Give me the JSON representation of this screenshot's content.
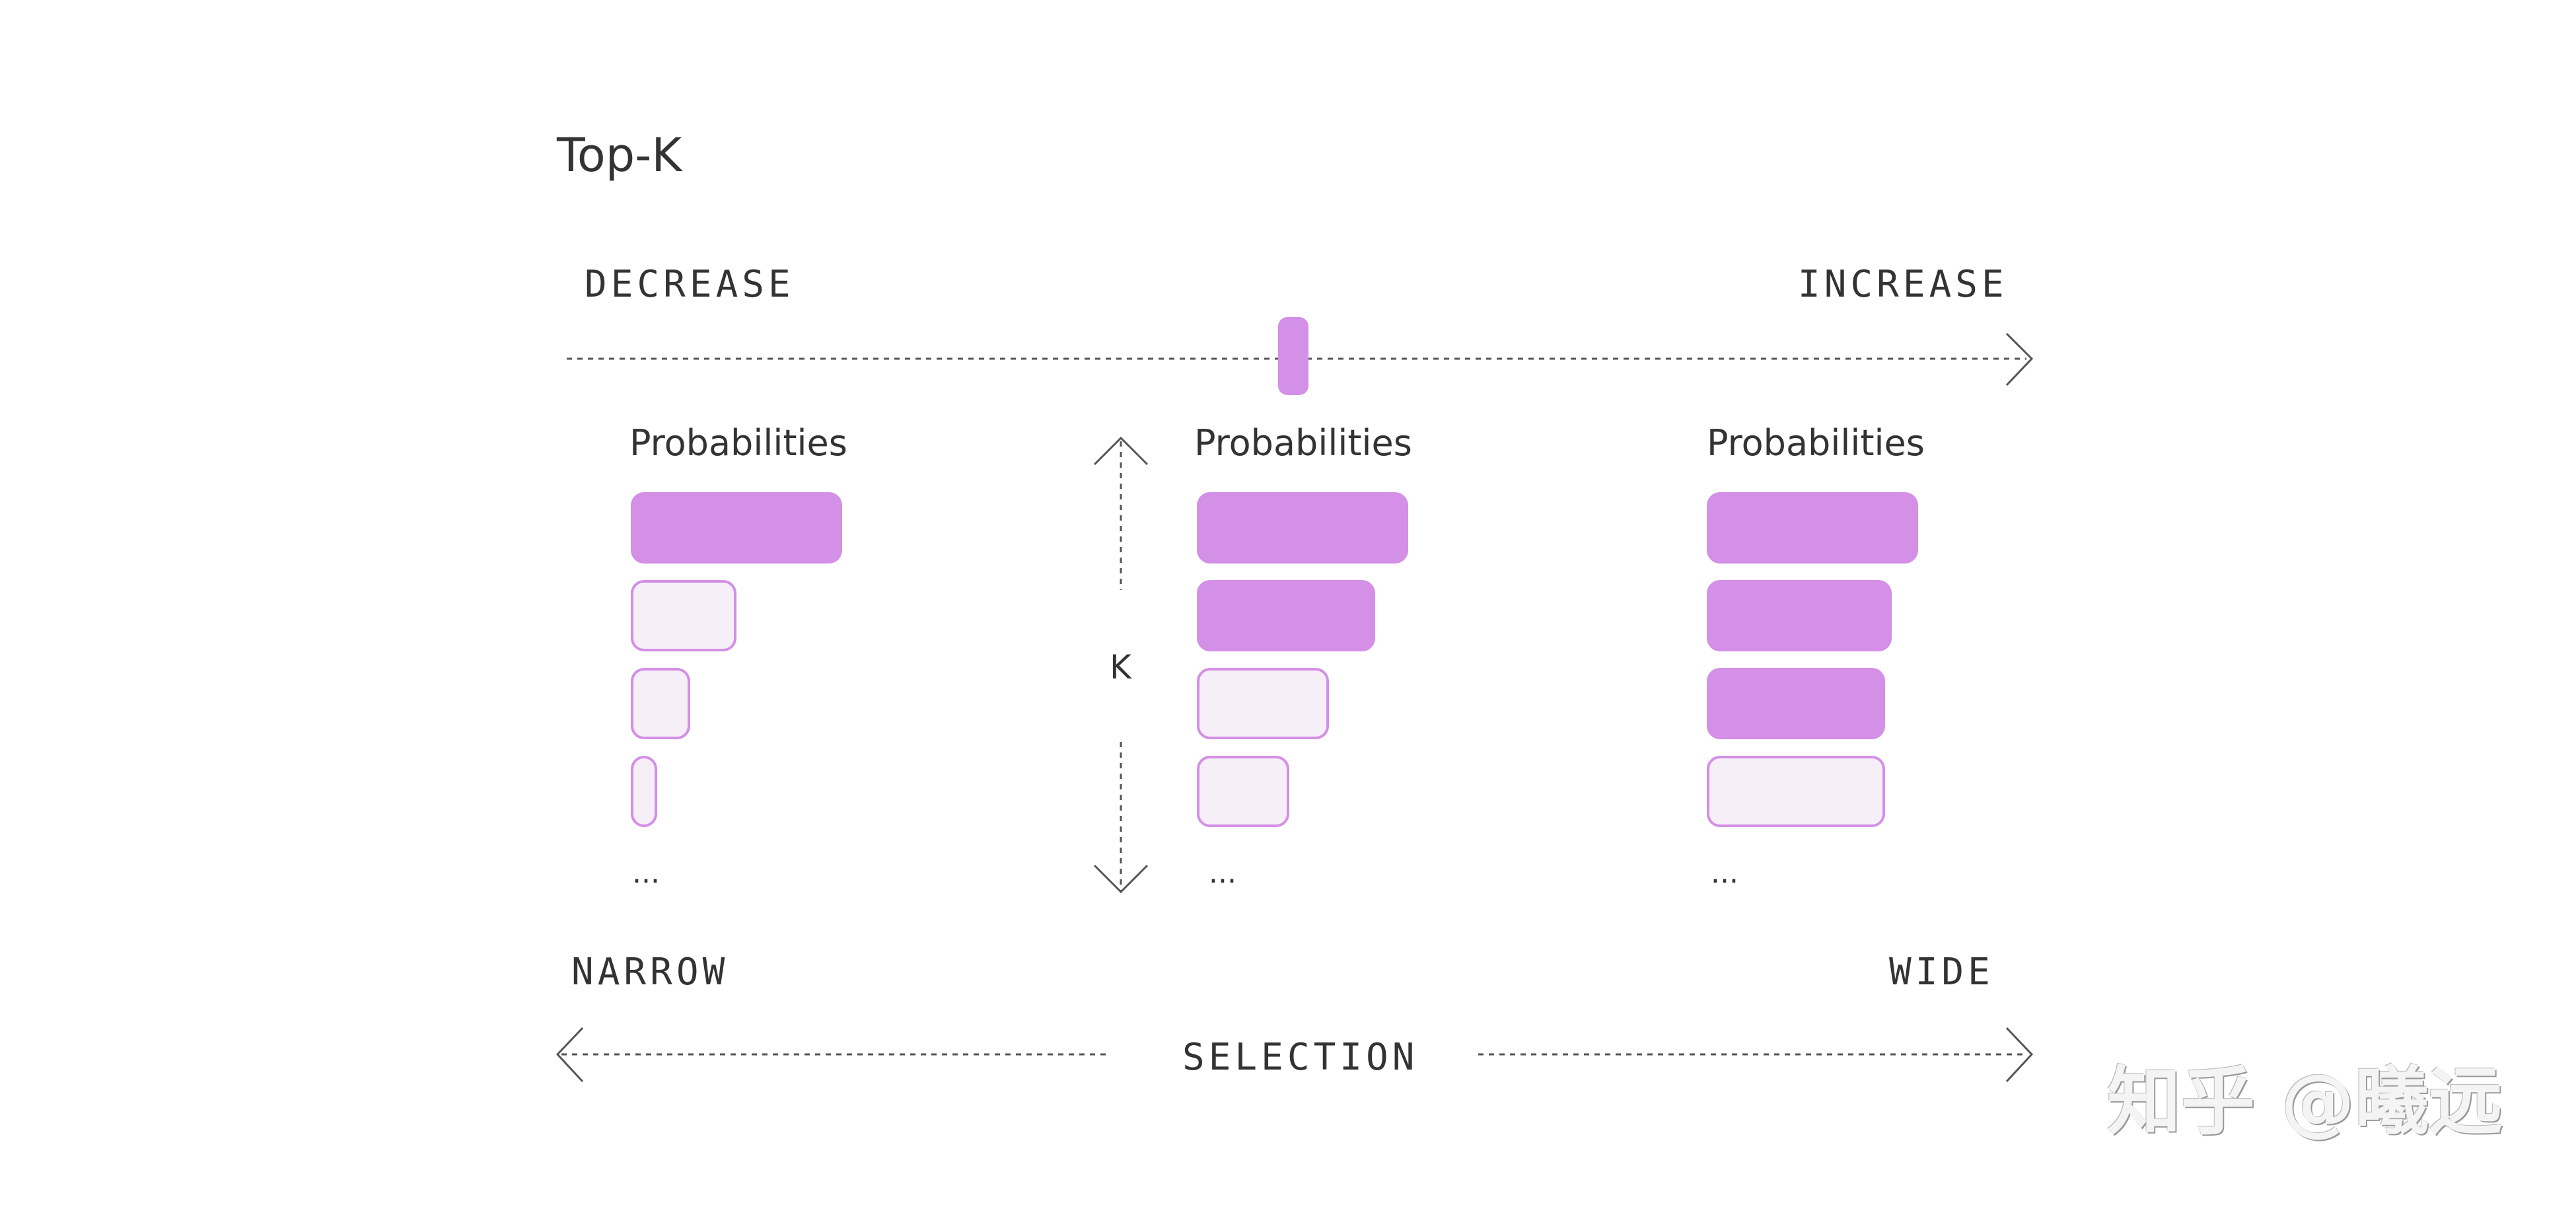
{
  "title": "Top-K",
  "top_scale": {
    "left_label": "DECREASE",
    "right_label": "INCREASE"
  },
  "columns": [
    {
      "heading": "Probabilities",
      "ellipsis": "...",
      "selected_count": 1,
      "bars": [
        0.32,
        0.16,
        0.09,
        0.04
      ]
    },
    {
      "heading": "Probabilities",
      "ellipsis": "...",
      "selected_count": 2,
      "bars": [
        0.32,
        0.27,
        0.2,
        0.14
      ]
    },
    {
      "heading": "Probabilities",
      "ellipsis": "...",
      "selected_count": 3,
      "bars": [
        0.32,
        0.28,
        0.27,
        0.27
      ]
    }
  ],
  "k_axis": {
    "label": "K"
  },
  "bottom_scale": {
    "left_label": "NARROW",
    "right_label": "WIDE",
    "center_label": "SELECTION"
  },
  "watermark": "知乎 @曦远",
  "colors": {
    "selected": "#d48fe6",
    "unselected_fill": "#f7eff8",
    "text": "#333333",
    "line": "#555555"
  }
}
